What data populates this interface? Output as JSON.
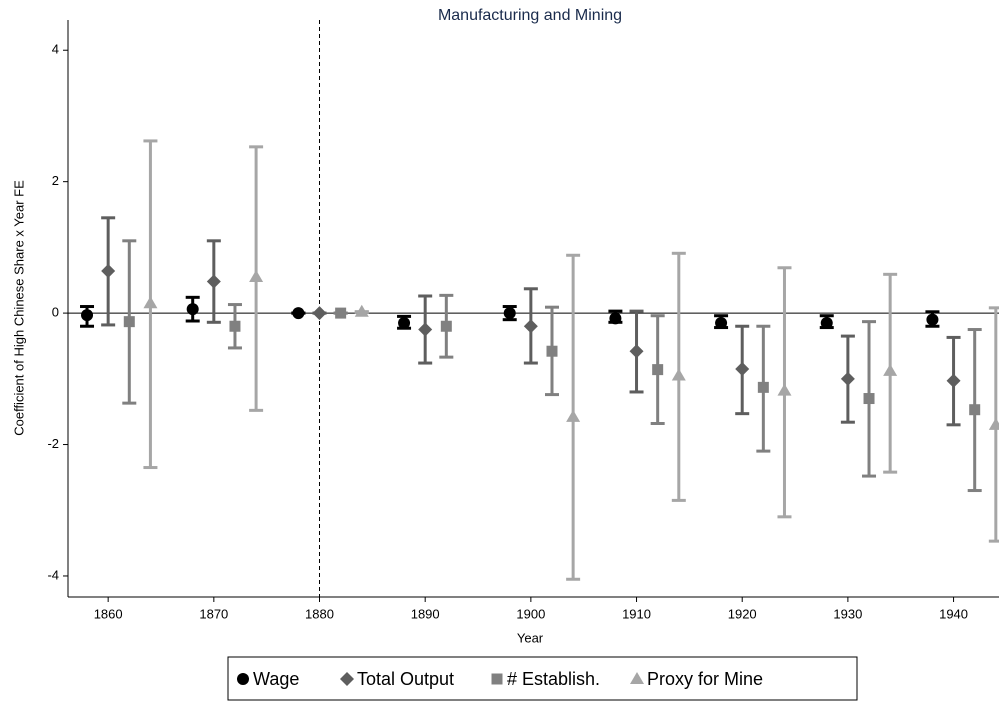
{
  "chart_data": {
    "type": "errorbar",
    "title": "Manufacturing and Mining",
    "x_label": "Year",
    "y_label": "Coefficient of High Chinese Share x Year FE",
    "xlim": [
      1856.2,
      1944.3
    ],
    "xticks": [
      1860,
      1870,
      1880,
      1890,
      1900,
      1910,
      1920,
      1930,
      1940
    ],
    "ylim": [
      -4.32,
      4.46
    ],
    "yticks": [
      -4,
      -2,
      0,
      2,
      4
    ],
    "vline": 1880,
    "hline": 0,
    "legend": "bottom",
    "series": [
      {
        "name": "Wage",
        "color": "#000000",
        "marker": "circle",
        "x": [
          1858,
          1868,
          1878,
          1888,
          1898,
          1908,
          1918,
          1928,
          1938
        ],
        "values": [
          -0.03,
          0.06,
          0,
          -0.15,
          0,
          -0.08,
          -0.15,
          -0.15,
          -0.1
        ],
        "lower": [
          -0.2,
          -0.12,
          0,
          -0.23,
          -0.1,
          -0.14,
          -0.22,
          -0.22,
          -0.2
        ],
        "upper": [
          0.1,
          0.24,
          0,
          -0.05,
          0.1,
          0.03,
          -0.04,
          -0.04,
          0.02
        ]
      },
      {
        "name": "Total Output",
        "color": "#5e5e5e",
        "marker": "diamond",
        "x": [
          1860,
          1870,
          1880,
          1890,
          1900,
          1910,
          1920,
          1930,
          1940
        ],
        "values": [
          0.64,
          0.48,
          0,
          -0.25,
          -0.2,
          -0.58,
          -0.85,
          -1.0,
          -1.03
        ],
        "lower": [
          -0.18,
          -0.14,
          0,
          -0.76,
          -0.76,
          -1.2,
          -1.53,
          -1.66,
          -1.7
        ],
        "upper": [
          1.45,
          1.1,
          0,
          0.26,
          0.37,
          0.03,
          -0.2,
          -0.35,
          -0.37
        ]
      },
      {
        "name": "# Establish.",
        "color": "#808080",
        "marker": "square",
        "x": [
          1862,
          1872,
          1882,
          1892,
          1902,
          1912,
          1922,
          1932,
          1942
        ],
        "values": [
          -0.13,
          -0.2,
          0,
          -0.2,
          -0.58,
          -0.86,
          -1.13,
          -1.3,
          -1.47
        ],
        "lower": [
          -1.37,
          -0.53,
          0,
          -0.67,
          -1.24,
          -1.68,
          -2.1,
          -2.48,
          -2.7
        ],
        "upper": [
          1.1,
          0.13,
          0,
          0.27,
          0.09,
          -0.04,
          -0.2,
          -0.13,
          -0.25
        ]
      },
      {
        "name": "Proxy for Mine",
        "color": "#a6a6a6",
        "marker": "triangle",
        "x": [
          1864,
          1874,
          1884,
          1904,
          1914,
          1924,
          1934,
          1944
        ],
        "values": [
          0.15,
          0.55,
          0.02,
          -1.58,
          -0.95,
          -1.18,
          -0.88,
          -1.7
        ],
        "lower": [
          -2.35,
          -1.48,
          0.02,
          -4.05,
          -2.85,
          -3.1,
          -2.42,
          -3.47
        ],
        "upper": [
          2.62,
          2.53,
          0.02,
          0.88,
          0.91,
          0.69,
          0.59,
          0.08
        ]
      }
    ]
  }
}
